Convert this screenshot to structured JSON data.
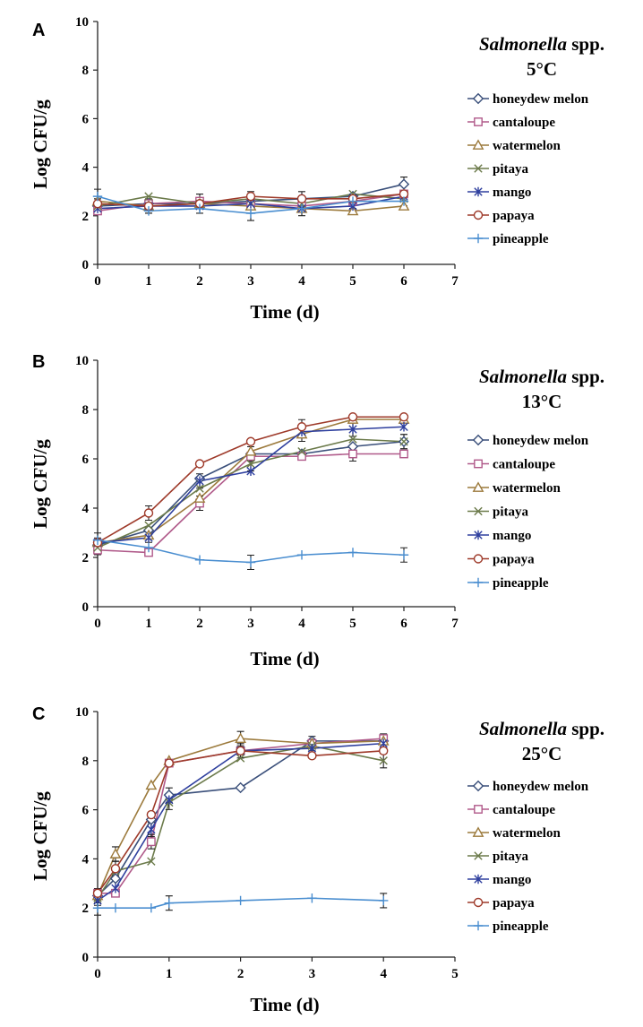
{
  "chart_data": [
    {
      "type": "line",
      "panel": "A",
      "title": "Salmonella spp. 5°C",
      "organism": "Salmonella",
      "organism_suffix": " spp.",
      "temperature": "5°C",
      "xlabel": "Time (d)",
      "ylabel": "Log CFU/g",
      "xlim": [
        0,
        7
      ],
      "ylim": [
        0,
        10
      ],
      "xticks": [
        0,
        1,
        2,
        3,
        4,
        5,
        6,
        7
      ],
      "yticks": [
        0,
        2,
        4,
        6,
        8,
        10
      ],
      "legend_position": "right",
      "series": [
        {
          "name": "honeydew melon",
          "color": "#3a4f7a",
          "marker": "diamond",
          "x": [
            0,
            1,
            2,
            3,
            4,
            5,
            6
          ],
          "y": [
            2.4,
            2.5,
            2.5,
            2.6,
            2.7,
            2.8,
            3.3
          ]
        },
        {
          "name": "cantaloupe",
          "color": "#b05a8a",
          "marker": "square",
          "x": [
            0,
            1,
            2,
            3,
            4,
            5,
            6
          ],
          "y": [
            2.2,
            2.5,
            2.6,
            2.5,
            2.4,
            2.6,
            2.9
          ]
        },
        {
          "name": "watermelon",
          "color": "#9c7a3c",
          "marker": "triangle",
          "x": [
            0,
            1,
            2,
            3,
            4,
            5,
            6
          ],
          "y": [
            2.6,
            2.4,
            2.5,
            2.4,
            2.3,
            2.2,
            2.4
          ]
        },
        {
          "name": "pitaya",
          "color": "#6b7a4a",
          "marker": "x",
          "x": [
            0,
            1,
            2,
            3,
            4,
            5,
            6
          ],
          "y": [
            2.4,
            2.8,
            2.5,
            2.7,
            2.5,
            2.9,
            2.7
          ]
        },
        {
          "name": "mango",
          "color": "#2e3f9e",
          "marker": "star",
          "x": [
            0,
            1,
            2,
            3,
            4,
            5,
            6
          ],
          "y": [
            2.3,
            2.4,
            2.4,
            2.5,
            2.3,
            2.4,
            2.8
          ]
        },
        {
          "name": "papaya",
          "color": "#9e3a2a",
          "marker": "circle",
          "x": [
            0,
            1,
            2,
            3,
            4,
            5,
            6
          ],
          "y": [
            2.5,
            2.4,
            2.5,
            2.8,
            2.7,
            2.7,
            2.9
          ]
        },
        {
          "name": "pineapple",
          "color": "#4a8ed0",
          "marker": "plus",
          "x": [
            0,
            1,
            2,
            3,
            4,
            5,
            6
          ],
          "y": [
            2.8,
            2.2,
            2.3,
            2.1,
            2.3,
            2.6,
            2.6
          ]
        }
      ]
    },
    {
      "type": "line",
      "panel": "B",
      "title": "Salmonella spp. 13°C",
      "organism": "Salmonella",
      "organism_suffix": " spp.",
      "temperature": "13°C",
      "xlabel": "Time (d)",
      "ylabel": "Log CFU/g",
      "xlim": [
        0,
        7
      ],
      "ylim": [
        0,
        10
      ],
      "xticks": [
        0,
        1,
        2,
        3,
        4,
        5,
        6,
        7
      ],
      "yticks": [
        0,
        2,
        4,
        6,
        8,
        10
      ],
      "legend_position": "right",
      "series": [
        {
          "name": "honeydew melon",
          "color": "#3a4f7a",
          "marker": "diamond",
          "x": [
            0,
            1,
            2,
            3,
            4,
            5,
            6
          ],
          "y": [
            2.5,
            3.1,
            5.2,
            6.2,
            6.2,
            6.5,
            6.7
          ]
        },
        {
          "name": "cantaloupe",
          "color": "#b05a8a",
          "marker": "square",
          "x": [
            0,
            1,
            2,
            3,
            4,
            5,
            6
          ],
          "y": [
            2.3,
            2.2,
            4.2,
            6.1,
            6.1,
            6.2,
            6.2
          ]
        },
        {
          "name": "watermelon",
          "color": "#9c7a3c",
          "marker": "triangle",
          "x": [
            0,
            1,
            2,
            3,
            4,
            5,
            6
          ],
          "y": [
            2.6,
            2.9,
            4.4,
            6.3,
            7.0,
            7.6,
            7.6
          ]
        },
        {
          "name": "pitaya",
          "color": "#6b7a4a",
          "marker": "x",
          "x": [
            0,
            1,
            2,
            3,
            4,
            5,
            6
          ],
          "y": [
            2.4,
            3.3,
            4.8,
            5.8,
            6.3,
            6.8,
            6.7
          ]
        },
        {
          "name": "mango",
          "color": "#2e3f9e",
          "marker": "star",
          "x": [
            0,
            1,
            2,
            3,
            4,
            5,
            6
          ],
          "y": [
            2.6,
            2.8,
            5.1,
            5.5,
            7.1,
            7.2,
            7.3
          ]
        },
        {
          "name": "papaya",
          "color": "#9e3a2a",
          "marker": "circle",
          "x": [
            0,
            1,
            2,
            3,
            4,
            5,
            6
          ],
          "y": [
            2.6,
            3.8,
            5.8,
            6.7,
            7.3,
            7.7,
            7.7
          ]
        },
        {
          "name": "pineapple",
          "color": "#4a8ed0",
          "marker": "plus",
          "x": [
            0,
            1,
            2,
            3,
            4,
            5,
            6
          ],
          "y": [
            2.7,
            2.4,
            1.9,
            1.8,
            2.1,
            2.2,
            2.1
          ]
        }
      ]
    },
    {
      "type": "line",
      "panel": "C",
      "title": "Salmonella spp. 25°C",
      "organism": "Salmonella",
      "organism_suffix": " spp.",
      "temperature": "25°C",
      "xlabel": "Time (d)",
      "ylabel": "Log CFU/g",
      "xlim": [
        0,
        5
      ],
      "ylim": [
        0,
        10
      ],
      "xticks": [
        0,
        1,
        2,
        3,
        4,
        5
      ],
      "yticks": [
        0,
        2,
        4,
        6,
        8,
        10
      ],
      "legend_position": "right",
      "series": [
        {
          "name": "honeydew melon",
          "color": "#3a4f7a",
          "marker": "diamond",
          "x": [
            0,
            0.25,
            0.75,
            1,
            2,
            3,
            4
          ],
          "y": [
            2.5,
            3.2,
            5.6,
            6.6,
            6.9,
            8.8,
            8.8
          ]
        },
        {
          "name": "cantaloupe",
          "color": "#b05a8a",
          "marker": "square",
          "x": [
            0,
            0.25,
            0.75,
            1,
            2,
            3,
            4
          ],
          "y": [
            2.6,
            2.6,
            4.7,
            7.9,
            8.4,
            8.7,
            8.9
          ]
        },
        {
          "name": "watermelon",
          "color": "#9c7a3c",
          "marker": "triangle",
          "x": [
            0,
            0.25,
            0.75,
            1,
            2,
            3,
            4
          ],
          "y": [
            2.5,
            4.2,
            7.0,
            8.0,
            8.9,
            8.7,
            8.8
          ]
        },
        {
          "name": "pitaya",
          "color": "#6b7a4a",
          "marker": "x",
          "x": [
            0,
            0.25,
            0.75,
            1,
            2,
            3,
            4
          ],
          "y": [
            2.4,
            3.5,
            3.9,
            6.3,
            8.1,
            8.6,
            8.0
          ]
        },
        {
          "name": "mango",
          "color": "#2e3f9e",
          "marker": "star",
          "x": [
            0,
            0.25,
            0.75,
            1,
            2,
            3,
            4
          ],
          "y": [
            2.3,
            2.8,
            5.2,
            6.4,
            8.4,
            8.5,
            8.7
          ]
        },
        {
          "name": "papaya",
          "color": "#9e3a2a",
          "marker": "circle",
          "x": [
            0,
            0.25,
            0.75,
            1,
            2,
            3,
            4
          ],
          "y": [
            2.6,
            3.6,
            5.8,
            7.9,
            8.4,
            8.2,
            8.4
          ]
        },
        {
          "name": "pineapple",
          "color": "#4a8ed0",
          "marker": "plus",
          "x": [
            0,
            0.25,
            0.75,
            1,
            2,
            3,
            4
          ],
          "y": [
            2.0,
            2.0,
            2.0,
            2.2,
            2.3,
            2.4,
            2.3
          ]
        }
      ]
    }
  ]
}
